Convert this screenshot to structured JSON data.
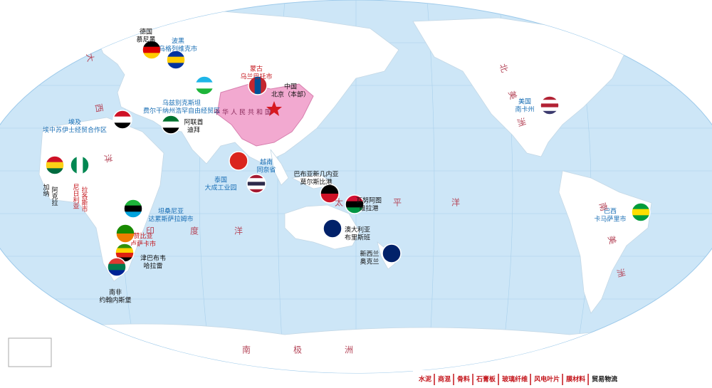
{
  "locations": [
    {
      "country": "德国",
      "city": "慕尼黑"
    },
    {
      "country": "波黑",
      "city": "乌格列维克市"
    },
    {
      "country": "蒙古",
      "city": "乌兰巴托市"
    },
    {
      "country": "中国",
      "city": "北京（本部）"
    },
    {
      "country": "乌兹别克斯坦",
      "city": "费尔干纳州浩罕自由经贸区"
    },
    {
      "country": "埃及",
      "city": "埃中苏伊士经贸合作区"
    },
    {
      "country": "阿联酋",
      "city": "迪拜"
    },
    {
      "country": "加纳",
      "city": "阿克拉"
    },
    {
      "country": "尼日利亚",
      "city": "拉各斯市"
    },
    {
      "country": "越南",
      "city": "同奈省"
    },
    {
      "country": "泰国",
      "city": "大成工业园"
    },
    {
      "country": "巴布亚新几内亚",
      "city": "莫尔斯比港"
    },
    {
      "country": "瓦努阿图",
      "city": "维拉港"
    },
    {
      "country": "坦桑尼亚",
      "city": "达累斯萨拉姆市"
    },
    {
      "country": "赞比亚",
      "city": "卢萨卡市"
    },
    {
      "country": "津巴布韦",
      "city": "哈拉雷"
    },
    {
      "country": "南非",
      "city": "约翰内斯堡"
    },
    {
      "country": "澳大利亚",
      "city": "布里斯班"
    },
    {
      "country": "新西兰",
      "city": "奥克兰"
    },
    {
      "country": "美国",
      "city": "南卡州"
    },
    {
      "country": "巴西",
      "city": "卡马萨里市"
    }
  ],
  "map_labels": [
    "北美洲",
    "南美洲",
    "大西洋",
    "太平洋",
    "印度洋",
    "南极洲",
    "中华人民共和国"
  ],
  "footer": {
    "items": [
      "水泥",
      "商混",
      "骨料",
      "石膏板",
      "玻璃纤维",
      "风电叶片",
      "膜材料",
      "贸易物流"
    ]
  }
}
